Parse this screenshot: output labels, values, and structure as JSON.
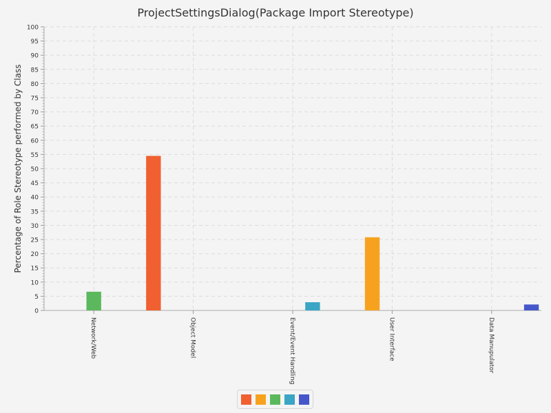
{
  "chart_data": {
    "type": "bar",
    "title": "ProjectSettingsDialog(Package Import Stereotype)",
    "xlabel": "",
    "ylabel": "Percentage of Role Stereotype performed by Class",
    "ylim": [
      0,
      100
    ],
    "yticks": [
      0,
      5,
      10,
      15,
      20,
      25,
      30,
      35,
      40,
      45,
      50,
      55,
      60,
      65,
      70,
      75,
      80,
      85,
      90,
      95,
      100
    ],
    "grid": true,
    "legend_placement": "bottom-center",
    "categories": [
      "Network/Web",
      "Object Model",
      "Event/Event Handling",
      "User Interface",
      "Data Manupulator"
    ],
    "series": [
      {
        "color": "#f06030",
        "values": [
          0,
          54.5,
          0,
          0,
          0
        ]
      },
      {
        "color": "#f7a21e",
        "values": [
          0,
          0,
          0,
          25.8,
          0
        ]
      },
      {
        "color": "#5cb85c",
        "values": [
          6.6,
          0,
          0,
          0,
          0
        ]
      },
      {
        "color": "#3aa5c4",
        "values": [
          0,
          0,
          2.9,
          0,
          0
        ]
      },
      {
        "color": "#4557c9",
        "values": [
          0,
          0,
          0,
          0,
          2.1
        ]
      }
    ]
  }
}
